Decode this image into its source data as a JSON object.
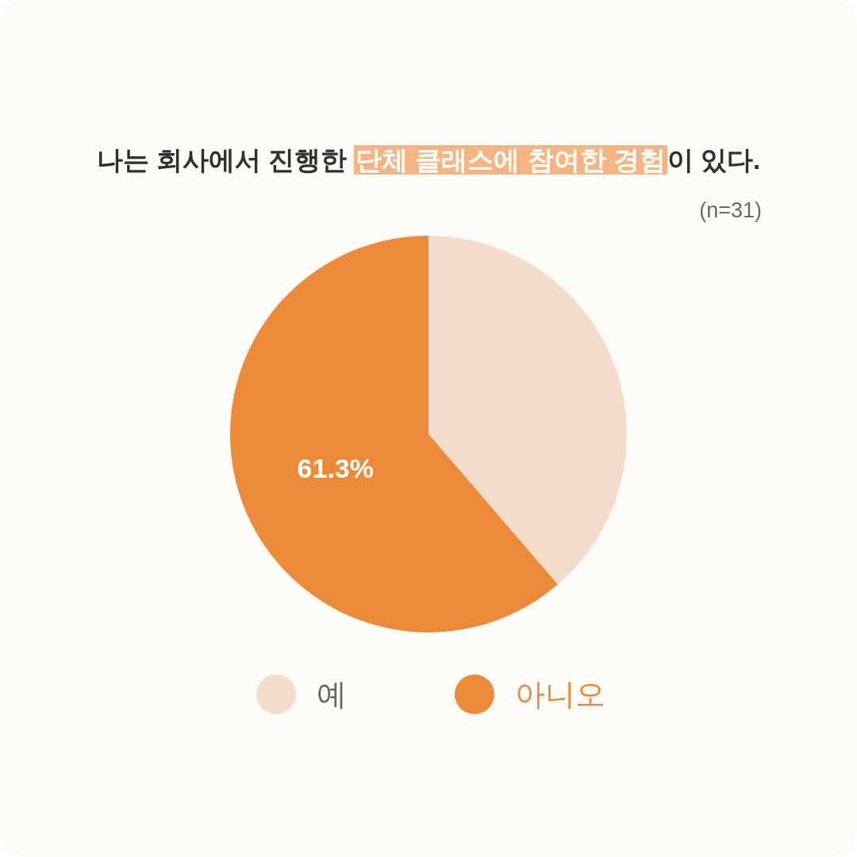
{
  "chart_data": {
    "type": "pie",
    "title": "나는 회사에서 진행한 **단체 클래스에 참여한 경험**이 있다.",
    "subtitle": "(n=31)",
    "categories": [
      "예",
      "아니오"
    ],
    "values": [
      38.7,
      61.3
    ],
    "colors": [
      "#f4dcca",
      "#ec8a39"
    ],
    "value_labels": [
      null,
      "61.3%"
    ],
    "legend": "bottom"
  }
}
